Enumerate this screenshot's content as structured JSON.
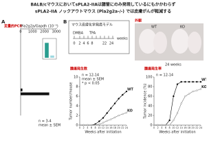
{
  "header": {
    "line1": "BALB/cマウスにおいてsPLA2-IIAは腸管にのみ発現しているにもかかわらず",
    "line2": "sPLA2-IIA ノックアウトマウス (Pla2g2a-/-) では皮膚がんが軽減する"
  },
  "panels": [
    "A",
    "B"
  ],
  "schedule": {
    "title": "マウス皮膚化学発癌モデル",
    "labels": [
      "DMBA",
      "TPA",
      "weeks"
    ],
    "ticks": [
      "0",
      "2",
      "4",
      "6",
      "8",
      "22",
      "24"
    ]
  },
  "photos": {
    "title": "外観",
    "labels": [
      "WT",
      "KO",
      "24 weeks"
    ]
  },
  "chart_data": [
    {
      "type": "hbar",
      "title": "定量的PCR",
      "xlabel": "Pla2g2a/Gapdh (10⁻⁵)",
      "categories": [
        null,
        null,
        null,
        null,
        null,
        null,
        null,
        null,
        null,
        null,
        null,
        null,
        null,
        null,
        null,
        null,
        null,
        null,
        null,
        null,
        null,
        null
      ],
      "values": [
        0,
        0,
        0,
        0,
        0,
        0,
        0,
        0,
        0,
        0,
        0,
        0,
        0,
        0,
        0,
        150,
        2400,
        0,
        0,
        0,
        0,
        0
      ],
      "color": "#111",
      "xlim": [
        0,
        3000
      ],
      "xticks": [
        0,
        1000,
        2000,
        3000
      ],
      "annotations": [
        "n = 3-4",
        "mean ± SEM"
      ]
    },
    {
      "type": "bar",
      "values": [
        1,
        0.15
      ],
      "colors": [
        "#2a9d8f",
        "#9ed8e0"
      ],
      "ylim": [
        0,
        1.2
      ]
    },
    {
      "type": "line",
      "title": "腫瘍発生数",
      "ylabel": "Tumor number/mouse",
      "xlabel": "Weeks after initiation",
      "x": [
        0,
        2,
        4,
        6,
        8,
        10,
        12,
        14,
        16,
        18,
        20,
        22,
        24
      ],
      "series": [
        {
          "name": "WT",
          "color": "#000",
          "values": [
            0,
            0,
            0,
            0,
            0.2,
            0.8,
            1.5,
            2.5,
            3.5,
            4.5,
            5.5,
            6.3,
            7
          ]
        },
        {
          "name": "KO",
          "color": "#777",
          "values": [
            0,
            0,
            0,
            0,
            0,
            0.2,
            0.5,
            0.9,
            1.2,
            1.6,
            2,
            2.3,
            2.6
          ]
        }
      ],
      "xlim": [
        0,
        24
      ],
      "xticks": [
        0,
        2,
        4,
        6,
        8,
        10,
        12,
        14,
        16,
        18,
        20,
        22,
        24
      ],
      "ylim": [
        0,
        10
      ],
      "yticks": [
        0,
        2,
        4,
        6,
        8,
        10
      ],
      "annotations": [
        "n = 12-14",
        "mean ± SEM",
        "* p < 0.05"
      ]
    },
    {
      "type": "line",
      "title": "腫瘍発生率",
      "ylabel": "Tumor incidence (%)",
      "xlabel": "Weeks after initiation",
      "x": [
        0,
        2,
        4,
        6,
        8,
        10,
        12,
        14,
        16,
        18,
        20,
        22,
        24
      ],
      "series": [
        {
          "name": "WT",
          "color": "#000",
          "values": [
            0,
            0,
            0,
            0,
            10,
            60,
            85,
            90,
            90,
            90,
            90,
            90,
            90
          ]
        },
        {
          "name": "KO",
          "color": "#777",
          "values": [
            0,
            0,
            0,
            0,
            0,
            10,
            25,
            45,
            60,
            65,
            70,
            72,
            75
          ]
        }
      ],
      "xlim": [
        0,
        24
      ],
      "xticks": [
        0,
        2,
        4,
        6,
        8,
        10,
        12,
        14,
        16,
        18,
        20,
        22,
        24
      ],
      "ylim": [
        0,
        100
      ],
      "yticks": [
        0,
        20,
        40,
        60,
        80,
        100
      ],
      "annotations": [
        "n = 12-14"
      ]
    }
  ]
}
